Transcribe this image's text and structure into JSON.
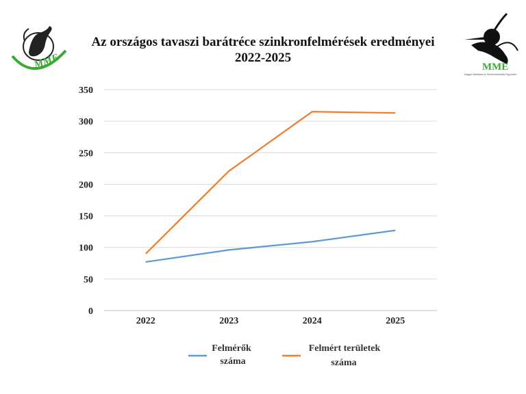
{
  "header": {
    "title_line1": "Az országos tavaszi barátréce szinkronfelmérések eredményei",
    "title_line2": "2022-2025"
  },
  "logos": {
    "left": {
      "text": "MME",
      "icon": "bird-logo-icon"
    },
    "right": {
      "text": "MME",
      "subtext": "Magyar Madártani és Természetvédelmi Egyesület",
      "icon": "lapwing-logo-icon"
    }
  },
  "colors": {
    "series1": "#5b9bd5",
    "series2": "#ed7d31",
    "grid": "#d9d9d9",
    "logo_green": "#3aaa35"
  },
  "chart_data": {
    "type": "line",
    "title": "Az országos tavaszi barátréce szinkronfelmérések eredményei 2022-2025",
    "categories": [
      "2022",
      "2023",
      "2024",
      "2025"
    ],
    "ylim": [
      0,
      350
    ],
    "yticks": [
      0,
      50,
      100,
      150,
      200,
      250,
      300,
      350
    ],
    "grid": true,
    "legend_position": "bottom",
    "series": [
      {
        "name_line1": "Felmérők",
        "name_line2": "száma",
        "name": "Felmérők száma",
        "values": [
          77,
          96,
          109,
          127
        ]
      },
      {
        "name_line1": "Felmért területek",
        "name_line2": "száma",
        "name": "Felmért területek száma",
        "values": [
          90,
          221,
          315,
          313
        ]
      }
    ]
  }
}
